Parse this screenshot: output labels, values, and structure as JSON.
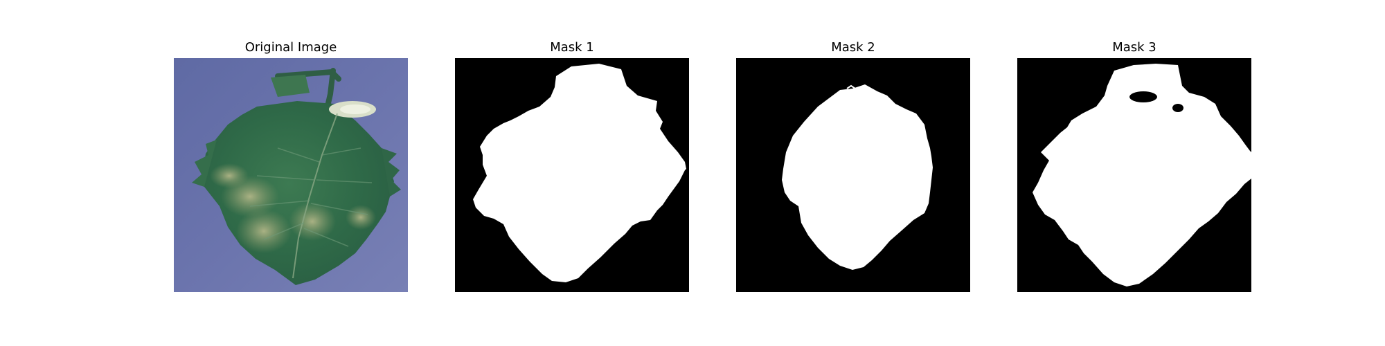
{
  "figure": {
    "panels": [
      {
        "title": "Original Image",
        "content": "leaf-photo",
        "background": "#6a72a8"
      },
      {
        "title": "Mask 1",
        "content": "binary-mask",
        "background": "#000000",
        "foreground": "#ffffff"
      },
      {
        "title": "Mask 2",
        "content": "binary-mask",
        "background": "#000000",
        "foreground": "#ffffff"
      },
      {
        "title": "Mask 3",
        "content": "binary-mask",
        "background": "#000000",
        "foreground": "#ffffff"
      }
    ]
  }
}
